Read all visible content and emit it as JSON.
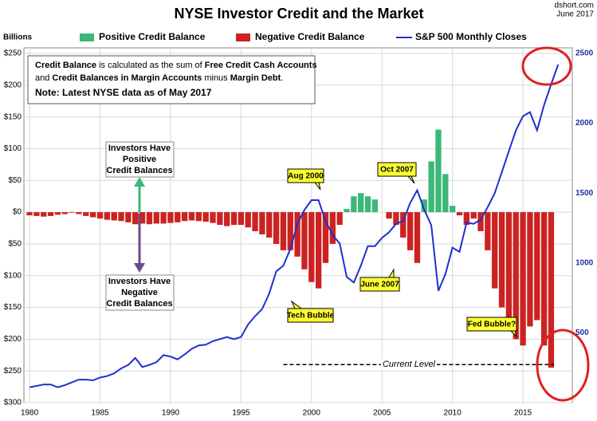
{
  "chart_data": {
    "type": "bar-line",
    "title": "NYSE Investor Credit and the Market",
    "source": "dshort.com",
    "date": "June 2017",
    "y_label": "Billions",
    "legend": [
      {
        "label": "Positive Credit Balance",
        "color": "#3cb878"
      },
      {
        "label": "Negative Credit Balance",
        "color": "#cc2222"
      },
      {
        "label": "S&P 500 Monthly Closes",
        "color": "#1f2fd0"
      }
    ],
    "note": [
      {
        "text": "Credit Balance",
        "bold": true
      },
      {
        "text": " is calculated as the sum of ",
        "bold": false
      },
      {
        "text": "Free Credit Cash Accounts",
        "bold": true
      },
      {
        "text": "and ",
        "bold": false
      },
      {
        "text": "Credit Balances in Margin Accounts",
        "bold": true
      },
      {
        "text": " minus ",
        "bold": false
      },
      {
        "text": "Margin Debt",
        "bold": true
      },
      {
        "text": ".",
        "bold": false
      }
    ],
    "note2": "Note: Latest NYSE data as of May 2017",
    "positive_box": [
      "Investors Have",
      "Positive",
      "Credit Balances"
    ],
    "negative_box": [
      "Investors Have",
      "Negative",
      "Credit Balances"
    ],
    "callouts": [
      "Aug 2000",
      "Oct 2007",
      "June 2007",
      "Tech Bubble",
      "Fed Bubble?"
    ],
    "current_level": {
      "label": "Current Level",
      "value": -240
    },
    "x": [
      1980,
      1980.5,
      1981,
      1981.5,
      1982,
      1982.5,
      1983,
      1983.5,
      1984,
      1984.5,
      1985,
      1985.5,
      1986,
      1986.5,
      1987,
      1987.5,
      1988,
      1988.5,
      1989,
      1989.5,
      1990,
      1990.5,
      1991,
      1991.5,
      1992,
      1992.5,
      1993,
      1993.5,
      1994,
      1994.5,
      1995,
      1995.5,
      1996,
      1996.5,
      1997,
      1997.5,
      1998,
      1998.5,
      1999,
      1999.5,
      2000,
      2000.5,
      2001,
      2001.5,
      2002,
      2002.5,
      2003,
      2003.5,
      2004,
      2004.5,
      2005,
      2005.5,
      2006,
      2006.5,
      2007,
      2007.5,
      2008,
      2008.5,
      2009,
      2009.5,
      2010,
      2010.5,
      2011,
      2011.5,
      2012,
      2012.5,
      2013,
      2013.5,
      2014,
      2014.5,
      2015,
      2015.5,
      2016,
      2016.5,
      2017,
      2017.5
    ],
    "series": [
      {
        "colors": {
          "positive": "#3cb878",
          "negative": "#cc2222"
        },
        "values": [
          -5,
          -6,
          -7,
          -6,
          -4,
          -3,
          -1,
          -3,
          -6,
          -8,
          -10,
          -12,
          -13,
          -14,
          -16,
          -19,
          -18,
          -19,
          -18,
          -18,
          -17,
          -16,
          -14,
          -13,
          -14,
          -15,
          -17,
          -20,
          -22,
          -20,
          -20,
          -24,
          -30,
          -35,
          -40,
          -50,
          -60,
          -60,
          -70,
          -90,
          -110,
          -120,
          -80,
          -50,
          -20,
          5,
          25,
          30,
          25,
          20,
          0,
          -10,
          -20,
          -40,
          -60,
          -80,
          20,
          80,
          130,
          60,
          10,
          -5,
          -20,
          -10,
          -30,
          -60,
          -120,
          -150,
          -180,
          -200,
          -210,
          -180,
          -170,
          -210,
          -245,
          null
        ]
      },
      {
        "axis": "y2",
        "color": "#1f2fd0",
        "values": [
          110,
          120,
          130,
          130,
          110,
          125,
          145,
          165,
          165,
          160,
          180,
          190,
          210,
          245,
          270,
          320,
          255,
          270,
          290,
          340,
          330,
          310,
          345,
          385,
          410,
          415,
          440,
          455,
          470,
          455,
          470,
          560,
          620,
          670,
          780,
          940,
          980,
          1100,
          1280,
          1380,
          1450,
          1450,
          1300,
          1200,
          1140,
          900,
          860,
          980,
          1120,
          1120,
          1180,
          1220,
          1280,
          1300,
          1430,
          1520,
          1380,
          1270,
          800,
          920,
          1110,
          1080,
          1290,
          1280,
          1310,
          1400,
          1500,
          1650,
          1800,
          1950,
          2050,
          2080,
          1950,
          2130,
          2280,
          2420
        ]
      }
    ],
    "xlim": [
      1979.6,
      2018.5
    ],
    "xticks": [
      1980,
      1985,
      1990,
      1995,
      2000,
      2005,
      2010,
      2015
    ],
    "ylim": [
      -300,
      250
    ],
    "yticks": [
      {
        "value": 250,
        "label": "$250"
      },
      {
        "value": 200,
        "label": "$200"
      },
      {
        "value": 150,
        "label": "$150"
      },
      {
        "value": 100,
        "label": "$100"
      },
      {
        "value": 50,
        "label": "$50"
      },
      {
        "value": 0,
        "label": "$0"
      },
      {
        "value": -50,
        "label": "$50"
      },
      {
        "value": -100,
        "label": "$100"
      },
      {
        "value": -150,
        "label": "$150"
      },
      {
        "value": -200,
        "label": "$200"
      },
      {
        "value": -250,
        "label": "$250"
      },
      {
        "value": -300,
        "label": "$300"
      }
    ],
    "y2lim": [
      0,
      2500
    ],
    "y2ticks": [
      500,
      1000,
      1500,
      2000,
      2500
    ],
    "grid": true
  }
}
